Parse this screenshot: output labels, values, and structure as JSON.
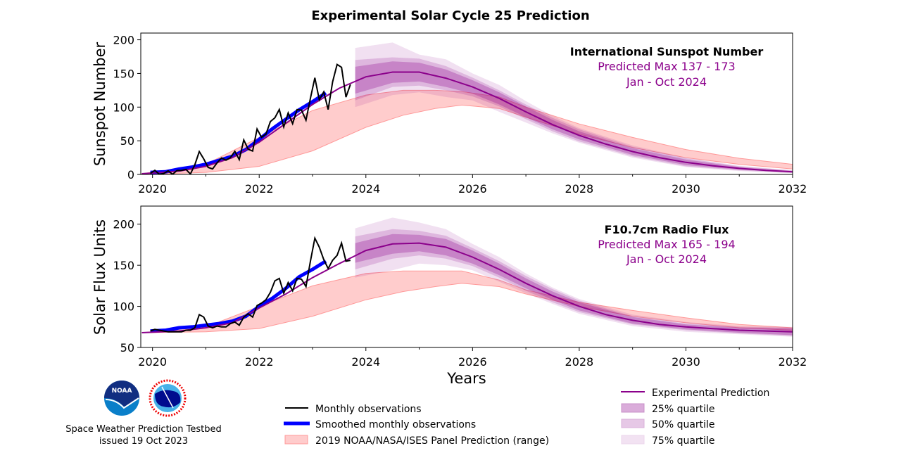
{
  "title": "Experimental Solar Cycle 25 Prediction",
  "xlabel": "Years",
  "colors": {
    "monthly": "#000000",
    "smoothed": "#0000ff",
    "panel": "#ff9999",
    "prediction": "#8b008b",
    "q25": "#b05fb0",
    "q50": "#c890c8",
    "q75": "#e6cde6",
    "annotation": "#8b008b"
  },
  "footer": {
    "org_line": "Space Weather Prediction Testbed",
    "issued": "issued 19 Oct 2023",
    "logos": [
      "NOAA",
      "NATIONAL WEATHER SERVICE"
    ]
  },
  "legend": {
    "monthly": "Monthly observations",
    "smoothed": "Smoothed monthly observations",
    "panel": "2019 NOAA/NASA/ISES Panel Prediction (range)",
    "prediction": "Experimental Prediction",
    "q25": "25% quartile",
    "q50": "50% quartile",
    "q75": "75% quartile"
  },
  "chart_data": [
    {
      "type": "line",
      "ylabel": "Sunspot Number",
      "annotation": {
        "title": "International Sunspot Number",
        "line1": "Predicted Max 137 - 173",
        "line2": "Jan - Oct 2024"
      },
      "xlim": [
        2019.78,
        2032
      ],
      "ylim": [
        0,
        210
      ],
      "xticks": [
        2020,
        2022,
        2024,
        2026,
        2028,
        2030,
        2032
      ],
      "yticks": [
        0,
        50,
        100,
        150,
        200
      ],
      "monthly": {
        "start": 2019.96,
        "step_months": 1,
        "values": [
          1.5,
          6.2,
          0.2,
          1.5,
          5.2,
          0.2,
          5.8,
          6.1,
          7.5,
          0.6,
          14.4,
          34.0,
          23.1,
          10.4,
          8.2,
          17.2,
          24.5,
          21.2,
          25.0,
          34.4,
          22.0,
          51.3,
          37.4,
          34.8,
          67.5,
          55.3,
          59.9,
          78.5,
          84.1,
          96.5,
          70.5,
          91.4,
          75.4,
          96.3,
          95.5,
          80.5,
          113.1,
          143.6,
          110.9,
          122.6,
          96.4,
          137.4,
          163.4,
          159.1,
          114.8,
          133.6
        ]
      },
      "smoothed": {
        "x": [
          2019.96,
          2020.25,
          2020.5,
          2020.75,
          2021,
          2021.25,
          2021.5,
          2021.75,
          2022,
          2022.25,
          2022.5,
          2022.75,
          2023,
          2023.25
        ],
        "y": [
          3,
          4,
          8,
          11,
          15,
          21,
          27,
          37,
          52,
          68,
          82,
          96,
          108,
          121
        ]
      },
      "prediction": {
        "x": [
          2019.8,
          2020.5,
          2021,
          2021.5,
          2022,
          2022.5,
          2023,
          2023.5,
          2024,
          2024.5,
          2025,
          2025.5,
          2026,
          2026.5,
          2027,
          2027.5,
          2028,
          2028.5,
          2029,
          2029.5,
          2030,
          2030.5,
          2031,
          2031.5,
          2032
        ],
        "y": [
          1,
          5,
          12,
          25,
          48,
          76,
          104,
          128,
          145,
          152,
          152,
          143,
          130,
          113,
          93,
          74,
          58,
          45,
          34,
          25,
          18,
          13,
          9,
          6,
          4
        ]
      },
      "quartiles": {
        "x": [
          2023.8,
          2024.5,
          2025,
          2025.5,
          2026,
          2026.5,
          2027,
          2027.5,
          2028,
          2029,
          2030,
          2031,
          2032
        ],
        "q25": {
          "lo": [
            120,
            136,
            138,
            130,
            120,
            104,
            85,
            67,
            52,
            29,
            14,
            7,
            3
          ],
          "hi": [
            160,
            168,
            166,
            156,
            140,
            122,
            101,
            81,
            64,
            39,
            22,
            11,
            5
          ]
        },
        "q50": {
          "lo": [
            110,
            130,
            132,
            125,
            116,
            101,
            82,
            64,
            49,
            27,
            12,
            6,
            2
          ],
          "hi": [
            170,
            174,
            172,
            161,
            144,
            125,
            104,
            84,
            67,
            41,
            24,
            12,
            6
          ]
        },
        "q75": {
          "lo": [
            100,
            118,
            122,
            115,
            110,
            93,
            77,
            61,
            47,
            25,
            11,
            5,
            2
          ],
          "hi": [
            188,
            196,
            178,
            171,
            150,
            133,
            109,
            87,
            69,
            43,
            25,
            13,
            6
          ]
        }
      },
      "panel": {
        "x": [
          2019.8,
          2021,
          2022,
          2023,
          2024,
          2024.7,
          2025.3,
          2025.8,
          2026.5,
          2027,
          2028,
          2029,
          2030,
          2031,
          2032
        ],
        "lo": [
          0,
          3,
          12,
          35,
          70,
          88,
          98,
          103,
          98,
          85,
          60,
          40,
          25,
          15,
          8
        ],
        "hi": [
          1,
          15,
          55,
          95,
          118,
          125,
          125,
          123,
          115,
          100,
          75,
          55,
          37,
          24,
          15
        ]
      }
    },
    {
      "type": "line",
      "ylabel": "Solar Flux Units",
      "annotation": {
        "title": "F10.7cm Radio Flux",
        "line1": "Predicted Max 165 - 194",
        "line2": "Jan - Oct 2024"
      },
      "xlim": [
        2019.78,
        2032
      ],
      "ylim": [
        50,
        222
      ],
      "xticks": [
        2020,
        2022,
        2024,
        2026,
        2028,
        2030,
        2032
      ],
      "yticks": [
        50,
        100,
        150,
        200
      ],
      "monthly": {
        "start": 2019.96,
        "step_months": 1,
        "values": [
          70,
          72,
          71,
          70,
          69,
          69,
          69,
          69,
          71,
          71,
          74,
          90,
          87,
          76,
          74,
          76,
          75,
          75,
          79,
          81,
          77,
          87,
          91,
          87,
          101,
          104,
          108,
          117,
          131,
          134,
          116,
          129,
          119,
          134,
          133,
          124,
          155,
          183,
          172,
          157,
          146,
          156,
          162,
          177,
          155,
          156
        ]
      },
      "smoothed": {
        "x": [
          2019.96,
          2020.25,
          2020.5,
          2020.75,
          2021,
          2021.25,
          2021.5,
          2021.75,
          2022,
          2022.25,
          2022.5,
          2022.75,
          2023,
          2023.25
        ],
        "y": [
          70,
          71,
          74,
          75,
          77,
          79,
          82,
          88,
          100,
          110,
          122,
          136,
          145,
          155
        ]
      },
      "prediction": {
        "x": [
          2019.8,
          2020.5,
          2021,
          2021.5,
          2022,
          2022.5,
          2023,
          2023.5,
          2024,
          2024.5,
          2025,
          2025.5,
          2026,
          2026.5,
          2027,
          2027.5,
          2028,
          2028.5,
          2029,
          2029.5,
          2030,
          2031,
          2032
        ],
        "y": [
          68,
          70,
          74,
          80,
          98,
          115,
          135,
          152,
          168,
          176,
          177,
          172,
          160,
          145,
          128,
          113,
          100,
          90,
          83,
          78,
          75,
          71,
          69
        ]
      },
      "quartiles": {
        "x": [
          2023.8,
          2024.5,
          2025,
          2025.5,
          2026,
          2026.5,
          2027,
          2027.5,
          2028,
          2029,
          2030,
          2031,
          2032
        ],
        "q25": {
          "lo": [
            153,
            164,
            167,
            162,
            152,
            138,
            122,
            108,
            95,
            79,
            72,
            68,
            65
          ],
          "hi": [
            177,
            188,
            187,
            182,
            168,
            152,
            134,
            118,
            105,
            87,
            78,
            74,
            73
          ]
        },
        "q50": {
          "lo": [
            145,
            158,
            162,
            158,
            149,
            135,
            119,
            105,
            93,
            78,
            71,
            67,
            64
          ],
          "hi": [
            185,
            194,
            192,
            186,
            171,
            155,
            137,
            121,
            107,
            88,
            79,
            75,
            74
          ]
        },
        "q75": {
          "lo": [
            135,
            144,
            152,
            150,
            144,
            130,
            116,
            103,
            91,
            76,
            69,
            66,
            63
          ],
          "hi": [
            195,
            208,
            202,
            194,
            176,
            160,
            140,
            123,
            109,
            90,
            81,
            76,
            75
          ]
        }
      },
      "panel": {
        "x": [
          2019.8,
          2021,
          2022,
          2023,
          2024,
          2024.7,
          2025.3,
          2025.8,
          2026.5,
          2027,
          2028,
          2029,
          2030,
          2031,
          2032
        ],
        "lo": [
          68,
          69,
          73,
          88,
          108,
          118,
          124,
          128,
          124,
          115,
          100,
          88,
          80,
          74,
          71
        ],
        "hi": [
          68,
          75,
          100,
          125,
          140,
          143,
          143,
          143,
          132,
          120,
          105,
          95,
          86,
          78,
          74
        ]
      }
    }
  ]
}
